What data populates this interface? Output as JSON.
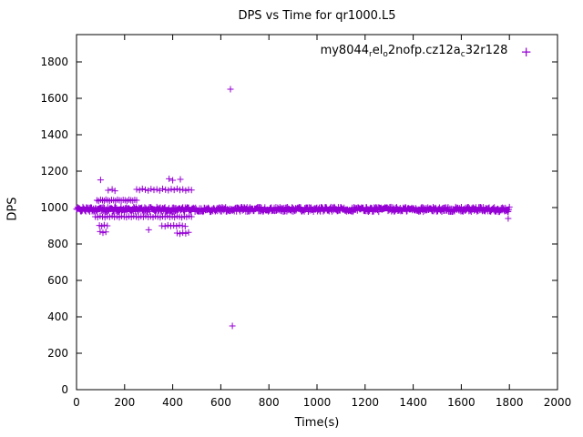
{
  "chart_data": {
    "type": "scatter",
    "title": "DPS vs Time for qr1000.L5",
    "xlabel": "Time(s)",
    "ylabel": "DPS",
    "xlim": [
      0,
      2000
    ],
    "ylim": [
      0,
      1950
    ],
    "xticks": [
      0,
      200,
      400,
      600,
      800,
      1000,
      1200,
      1400,
      1600,
      1800,
      2000
    ],
    "yticks": [
      0,
      200,
      400,
      600,
      800,
      1000,
      1200,
      1400,
      1600,
      1800
    ],
    "grid": false,
    "color": "#9400d3",
    "marker": "plus",
    "legend": {
      "position": "top-right",
      "label_raw": "my8044_rel_o2nofp.cz12a_c32r128",
      "marker_glyph": "+",
      "segments": [
        {
          "text": "my8044",
          "sub": false
        },
        {
          "text": "r",
          "sub": true
        },
        {
          "text": "el",
          "sub": false
        },
        {
          "text": "o",
          "sub": true
        },
        {
          "text": "2nofp.cz12a",
          "sub": false
        },
        {
          "text": "c",
          "sub": true
        },
        {
          "text": "32r128",
          "sub": false
        }
      ]
    },
    "series": [
      {
        "name": "my8044_rel_o2nofp.cz12a_c32r128",
        "band": {
          "x_min": 0,
          "x_max": 1800,
          "y_center": 990,
          "y_spread": 26,
          "count": 750
        },
        "points": [
          [
            85,
            1040
          ],
          [
            92,
            1036
          ],
          [
            100,
            1043
          ],
          [
            108,
            1040
          ],
          [
            115,
            1037
          ],
          [
            122,
            1044
          ],
          [
            130,
            1040
          ],
          [
            138,
            1036
          ],
          [
            146,
            1042
          ],
          [
            154,
            1040
          ],
          [
            162,
            1037
          ],
          [
            170,
            1043
          ],
          [
            178,
            1040
          ],
          [
            186,
            1038
          ],
          [
            194,
            1042
          ],
          [
            202,
            1040
          ],
          [
            210,
            1036
          ],
          [
            218,
            1043
          ],
          [
            226,
            1040
          ],
          [
            234,
            1038
          ],
          [
            242,
            1042
          ],
          [
            250,
            1040
          ],
          [
            132,
            1095
          ],
          [
            148,
            1100
          ],
          [
            160,
            1092
          ],
          [
            250,
            1100
          ],
          [
            262,
            1096
          ],
          [
            274,
            1103
          ],
          [
            286,
            1098
          ],
          [
            298,
            1094
          ],
          [
            310,
            1102
          ],
          [
            322,
            1097
          ],
          [
            334,
            1100
          ],
          [
            346,
            1094
          ],
          [
            358,
            1103
          ],
          [
            370,
            1098
          ],
          [
            382,
            1095
          ],
          [
            394,
            1101
          ],
          [
            406,
            1097
          ],
          [
            418,
            1103
          ],
          [
            430,
            1096
          ],
          [
            442,
            1100
          ],
          [
            454,
            1094
          ],
          [
            466,
            1099
          ],
          [
            478,
            1096
          ],
          [
            100,
            1152
          ],
          [
            385,
            1158
          ],
          [
            400,
            1150
          ],
          [
            432,
            1155
          ],
          [
            78,
            950
          ],
          [
            88,
            947
          ],
          [
            98,
            953
          ],
          [
            108,
            950
          ],
          [
            118,
            946
          ],
          [
            128,
            952
          ],
          [
            138,
            949
          ],
          [
            148,
            954
          ],
          [
            158,
            948
          ],
          [
            168,
            951
          ],
          [
            178,
            946
          ],
          [
            188,
            953
          ],
          [
            198,
            950
          ],
          [
            208,
            947
          ],
          [
            218,
            952
          ],
          [
            228,
            948
          ],
          [
            238,
            953
          ],
          [
            248,
            950
          ],
          [
            258,
            946
          ],
          [
            268,
            952
          ],
          [
            278,
            949
          ],
          [
            288,
            954
          ],
          [
            298,
            948
          ],
          [
            308,
            951
          ],
          [
            318,
            947
          ],
          [
            328,
            953
          ],
          [
            338,
            950
          ],
          [
            348,
            946
          ],
          [
            358,
            952
          ],
          [
            368,
            949
          ],
          [
            378,
            954
          ],
          [
            388,
            948
          ],
          [
            398,
            951
          ],
          [
            408,
            947
          ],
          [
            418,
            953
          ],
          [
            428,
            950
          ],
          [
            438,
            946
          ],
          [
            448,
            952
          ],
          [
            458,
            949
          ],
          [
            468,
            954
          ],
          [
            478,
            950
          ],
          [
            95,
            902
          ],
          [
            105,
            898
          ],
          [
            115,
            904
          ],
          [
            128,
            900
          ],
          [
            355,
            900
          ],
          [
            368,
            897
          ],
          [
            380,
            903
          ],
          [
            392,
            899
          ],
          [
            404,
            902
          ],
          [
            416,
            898
          ],
          [
            428,
            903
          ],
          [
            440,
            900
          ],
          [
            452,
            897
          ],
          [
            98,
            868
          ],
          [
            110,
            862
          ],
          [
            122,
            866
          ],
          [
            300,
            878
          ],
          [
            418,
            860
          ],
          [
            430,
            856
          ],
          [
            442,
            862
          ],
          [
            454,
            858
          ],
          [
            466,
            864
          ],
          [
            640,
            1650
          ],
          [
            648,
            350
          ],
          [
            1795,
            940
          ]
        ]
      }
    ]
  }
}
